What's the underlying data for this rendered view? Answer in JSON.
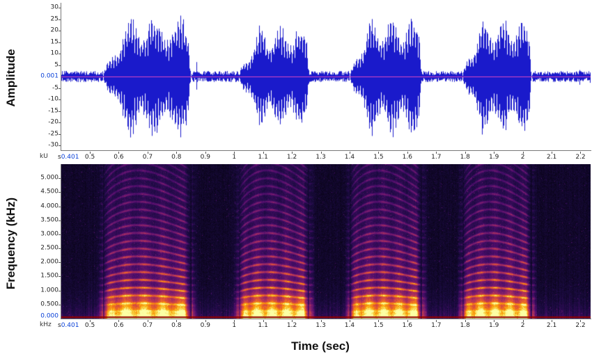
{
  "figure": {
    "amplitude_axis_title": "Amplitude",
    "frequency_axis_title": "Frequency (kHz)",
    "time_axis_title": "Time (sec)"
  },
  "waveform_axis": {
    "unit_label": "kU",
    "cursor_label": "0.001",
    "tick_labels": [
      "30",
      "25",
      "20",
      "15",
      "10",
      "5",
      "-5",
      "-10",
      "-15",
      "-20",
      "-25",
      "-30"
    ],
    "tick_values": [
      30,
      25,
      20,
      15,
      10,
      5,
      -5,
      -10,
      -15,
      -20,
      -25,
      -30
    ]
  },
  "spectrogram_axis": {
    "unit_label": "kHz",
    "cursor_label": "0.000",
    "tick_labels": [
      "5.000",
      "4.500",
      "4.000",
      "3.500",
      "3.000",
      "2.500",
      "2.000",
      "1.500",
      "1.000",
      "0.500"
    ],
    "tick_values": [
      5.0,
      4.5,
      4.0,
      3.5,
      3.0,
      2.5,
      2.0,
      1.5,
      1.0,
      0.5
    ]
  },
  "time_axis": {
    "unit_prefix": "s",
    "start_label": "0.401",
    "start_value": 0.401,
    "tick_labels": [
      "0.5",
      "0.6",
      "0.7",
      "0.8",
      "0.9",
      "1",
      "1.1",
      "1.2",
      "1.3",
      "1.4",
      "1.5",
      "1.6",
      "1.7",
      "1.8",
      "1.9",
      "2",
      "2.1",
      "2.2"
    ],
    "tick_values": [
      0.5,
      0.6,
      0.7,
      0.8,
      0.9,
      1.0,
      1.1,
      1.2,
      1.3,
      1.4,
      1.5,
      1.6,
      1.7,
      1.8,
      1.9,
      2.0,
      2.1,
      2.2
    ]
  },
  "colors": {
    "waveform": "#1a1acb",
    "zero_line": "#ff4fc1",
    "cursor_text": "#0a41d8",
    "tick_text": "#222222",
    "spectrogram_baseline": "#8f0000",
    "spectrogram_background": "#000000"
  },
  "chart_data": [
    {
      "type": "line",
      "title": "Oscillogram (waveform) of four call syllables",
      "ylabel": "Amplitude",
      "y_unit": "kU",
      "xlabel": "Time (sec)",
      "xlim": [
        0.401,
        2.235
      ],
      "ylim": [
        -30,
        30
      ],
      "cursor_amplitude": 0.001,
      "noise_amplitude": 2.4,
      "pulse_rate_hz": 55,
      "bursts": [
        {
          "start": 0.545,
          "end": 0.85,
          "peak": 27
        },
        {
          "start": 1.015,
          "end": 1.26,
          "peak": 22
        },
        {
          "start": 1.4,
          "end": 1.65,
          "peak": 26
        },
        {
          "start": 1.79,
          "end": 2.03,
          "peak": 26
        }
      ]
    },
    {
      "type": "heatmap",
      "title": "Spectrogram of four call syllables with harmonic stacks",
      "ylabel": "Frequency (kHz)",
      "y_unit": "kHz",
      "xlabel": "Time (sec)",
      "xlim": [
        0.401,
        2.235
      ],
      "ylim": [
        0,
        5.5
      ],
      "cursor_frequency": 0.0,
      "harmonic_spacing_khz": 0.24,
      "pitch_modulation": 0.16,
      "bursts": [
        {
          "start": 0.545,
          "end": 0.85
        },
        {
          "start": 1.015,
          "end": 1.26
        },
        {
          "start": 1.4,
          "end": 1.65
        },
        {
          "start": 1.79,
          "end": 2.03
        }
      ],
      "colormap_stops": [
        "#000003",
        "#1b0b41",
        "#4a0c6b",
        "#781c6d",
        "#a52c60",
        "#cf4446",
        "#ed6925",
        "#fb9b06",
        "#f7d03c",
        "#fcffa4"
      ]
    }
  ]
}
